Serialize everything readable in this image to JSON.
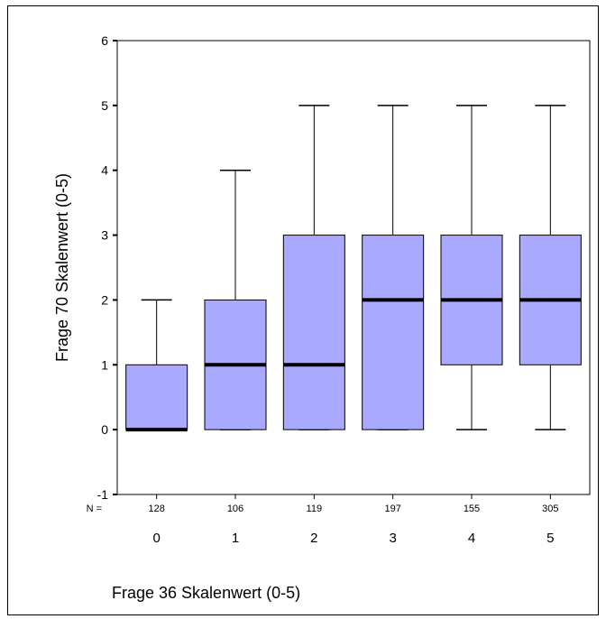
{
  "chart_data": {
    "type": "boxplot",
    "title": "",
    "xlabel": "Frage 36 Skalenwert (0-5)",
    "ylabel": "Frage 70 Skalenwert (0-5)",
    "ylim": [
      -1,
      6
    ],
    "yticks": [
      "-1",
      "0",
      "1",
      "2",
      "3",
      "4",
      "5",
      "6"
    ],
    "n_prefix": "N =",
    "categories": [
      "0",
      "1",
      "2",
      "3",
      "4",
      "5"
    ],
    "n": [
      "128",
      "106",
      "119",
      "197",
      "155",
      "305"
    ],
    "boxes": [
      {
        "min": 0,
        "q1": 0,
        "median": 0,
        "q3": 1,
        "max": 2
      },
      {
        "min": 0,
        "q1": 0,
        "median": 1,
        "q3": 2,
        "max": 4
      },
      {
        "min": 0,
        "q1": 0,
        "median": 1,
        "q3": 3,
        "max": 5
      },
      {
        "min": 0,
        "q1": 0,
        "median": 2,
        "q3": 3,
        "max": 5
      },
      {
        "min": 0,
        "q1": 1,
        "median": 2,
        "q3": 3,
        "max": 5
      },
      {
        "min": 0,
        "q1": 1,
        "median": 2,
        "q3": 3,
        "max": 5
      }
    ],
    "grid": false,
    "colors": {
      "box_fill": "#a9a9ff",
      "stroke": "#000000"
    }
  }
}
